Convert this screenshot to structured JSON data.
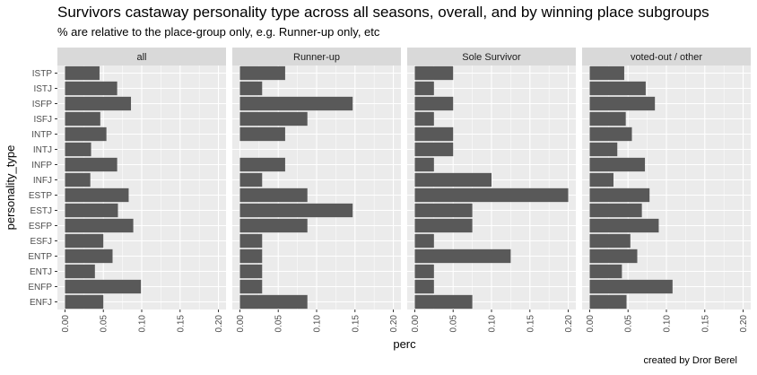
{
  "title": "Survivors castaway personality type across all seasons, overall, and by winning place subgroups",
  "subtitle": "% are relative to the place-group only, e.g. Runner-up only, etc",
  "caption": "created by Dror Berel",
  "colors": {
    "bar": "#595959",
    "panel_bg": "#ebebeb",
    "strip_bg": "#d9d9d9",
    "grid": "#ffffff"
  },
  "chart_data": {
    "type": "bar",
    "orientation": "horizontal",
    "xlabel": "perc",
    "ylabel": "personality_type",
    "xlim": [
      0,
      0.2
    ],
    "xticks": [
      "0.00",
      "0.05",
      "0.10",
      "0.15",
      "0.20"
    ],
    "grid": true,
    "categories": [
      "ISTP",
      "ISTJ",
      "ISFP",
      "ISFJ",
      "INTP",
      "INTJ",
      "INFP",
      "INFJ",
      "ESTP",
      "ESTJ",
      "ESFP",
      "ESFJ",
      "ENTP",
      "ENTJ",
      "ENFP",
      "ENFJ"
    ],
    "series": [
      {
        "name": "all",
        "values": [
          0.045,
          0.068,
          0.086,
          0.046,
          0.054,
          0.034,
          0.068,
          0.033,
          0.083,
          0.069,
          0.089,
          0.05,
          0.062,
          0.039,
          0.099,
          0.05
        ]
      },
      {
        "name": "Runner-up",
        "values": [
          0.059,
          0.029,
          0.147,
          0.088,
          0.059,
          0,
          0.059,
          0.029,
          0.088,
          0.147,
          0.088,
          0.029,
          0.029,
          0.029,
          0.029,
          0.088
        ]
      },
      {
        "name": "Sole Survivor",
        "values": [
          0.05,
          0.025,
          0.05,
          0.025,
          0.05,
          0.05,
          0.025,
          0.1,
          0.2,
          0.075,
          0.075,
          0.025,
          0.125,
          0.025,
          0.025,
          0.075
        ]
      },
      {
        "name": "voted-out / other",
        "values": [
          0.045,
          0.073,
          0.085,
          0.047,
          0.055,
          0.036,
          0.072,
          0.031,
          0.078,
          0.068,
          0.09,
          0.053,
          0.062,
          0.042,
          0.108,
          0.048
        ]
      }
    ]
  }
}
